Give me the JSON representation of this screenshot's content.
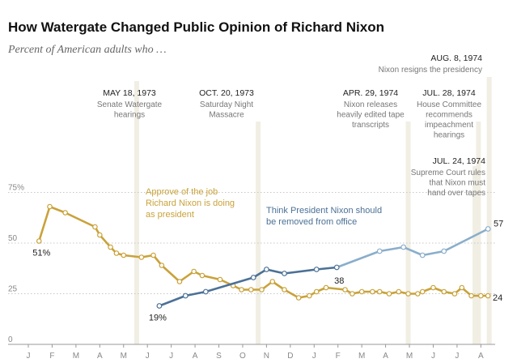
{
  "chart_data": {
    "type": "line",
    "title": "How Watergate Changed Public Opinion of Richard Nixon",
    "subtitle": "Percent of American adults who …",
    "ylim": [
      0,
      100
    ],
    "y_ticks": [
      {
        "value": 0,
        "label": "0"
      },
      {
        "value": 25,
        "label": "25"
      },
      {
        "value": 50,
        "label": "50"
      },
      {
        "value": 75,
        "label": "75%"
      }
    ],
    "x_range": [
      0,
      19.6
    ],
    "month_ticks": [
      "J",
      "F",
      "M",
      "A",
      "M",
      "J",
      "J",
      "A",
      "S",
      "O",
      "N",
      "D",
      "J",
      "F",
      "M",
      "A",
      "M",
      "J",
      "J",
      "A"
    ],
    "series": [
      {
        "name": "Approve of the job Richard Nixon is doing as president",
        "label_lines": [
          "Approve of the job",
          "Richard Nixon is doing",
          "as president"
        ],
        "color": "#c9a23a",
        "x": [
          0.45,
          0.9,
          1.55,
          2.8,
          3.0,
          3.45,
          3.7,
          4.0,
          4.75,
          5.25,
          5.6,
          6.35,
          6.95,
          7.3,
          8.05,
          8.6,
          8.95,
          9.35,
          9.8,
          10.25,
          10.75,
          11.35,
          11.8,
          12.1,
          12.5,
          13.3,
          13.6,
          14.0,
          14.45,
          14.75,
          15.15,
          15.55,
          15.95,
          16.35,
          16.55,
          17.0,
          17.45,
          17.9,
          18.2,
          18.6,
          19.0,
          19.3
        ],
        "y": [
          51,
          68,
          65,
          58,
          54,
          48,
          45,
          44,
          43,
          44,
          39,
          31,
          36,
          34,
          32,
          29,
          27,
          27,
          27,
          31,
          27,
          23,
          24,
          26,
          28,
          27,
          25,
          26,
          26,
          26,
          25,
          26,
          25,
          25,
          26,
          28,
          26,
          25,
          28,
          24,
          24,
          24
        ],
        "start_label": "51%",
        "end_label": "24"
      },
      {
        "name": "Think President Nixon should be removed from office",
        "label_lines": [
          "Think President Nixon should",
          "be removed from office"
        ],
        "color": "#4b7196",
        "color_late": "#8aaecb",
        "x": [
          5.5,
          6.6,
          7.45,
          9.45,
          10.0,
          10.75,
          12.1,
          12.95,
          14.75,
          15.75,
          16.55,
          17.45,
          19.3
        ],
        "y": [
          19,
          24,
          26,
          33,
          37,
          35,
          37,
          38,
          46,
          48,
          44,
          46,
          57
        ],
        "highlight_index": 7,
        "start_label": "19%",
        "highlight_label": "38",
        "end_label": "57"
      }
    ],
    "events": [
      {
        "x": 4.55,
        "date": "MAY 18, 1973",
        "lines": [
          "Senate Watergate",
          "hearings"
        ]
      },
      {
        "x": 9.65,
        "date": "OCT. 20, 1973",
        "lines": [
          "Saturday Night",
          "Massacre"
        ]
      },
      {
        "x": 15.95,
        "date": "APR. 29, 1974",
        "lines": [
          "Nixon releases",
          "heavily edited tape",
          "transcripts"
        ]
      },
      {
        "x": 18.75,
        "date": "JUL. 24, 1974",
        "lines": [
          "Supreme Court rules",
          "that Nixon must",
          "hand over tapes"
        ]
      },
      {
        "x": 18.9,
        "date": "JUL. 28, 1974",
        "lines": [
          "House Committee",
          "recommends",
          "impeachment",
          "hearings"
        ]
      },
      {
        "x": 19.35,
        "date": "AUG. 8, 1974",
        "lines": [
          "Nixon resigns the presidency"
        ]
      }
    ]
  }
}
